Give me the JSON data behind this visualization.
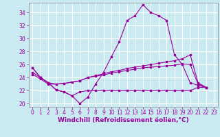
{
  "background_color": "#c8eaf0",
  "grid_color": "#ffffff",
  "line_color": "#990099",
  "x_ticks": [
    0,
    1,
    2,
    3,
    4,
    5,
    6,
    7,
    8,
    9,
    10,
    11,
    12,
    13,
    14,
    15,
    16,
    17,
    18,
    19,
    20,
    21,
    22,
    23
  ],
  "y_ticks": [
    20,
    22,
    24,
    26,
    28,
    30,
    32,
    34
  ],
  "ylim": [
    19.5,
    35.5
  ],
  "xlim": [
    -0.5,
    23.5
  ],
  "xlabel": "Windchill (Refroidissement éolien,°C)",
  "s0_x": [
    0,
    1,
    2,
    3,
    4,
    5,
    6,
    7,
    8,
    9,
    10,
    11,
    12,
    13,
    14,
    15,
    16,
    17,
    18,
    19,
    20,
    21,
    22
  ],
  "s0_y": [
    25.5,
    24.0,
    23.2,
    22.1,
    21.8,
    21.2,
    20.0,
    21.0,
    23.0,
    24.8,
    27.2,
    29.5,
    32.8,
    33.5,
    35.2,
    34.0,
    33.5,
    32.8,
    27.5,
    26.0,
    23.2,
    22.8,
    22.5
  ],
  "s1_x": [
    0,
    1,
    2,
    3,
    4,
    5,
    6,
    7,
    8,
    9,
    10,
    11,
    12,
    13,
    14,
    15,
    16,
    17,
    18,
    19,
    20,
    21,
    22
  ],
  "s1_y": [
    24.8,
    24.0,
    23.2,
    23.0,
    23.1,
    23.3,
    23.5,
    24.0,
    24.3,
    24.6,
    24.9,
    25.1,
    25.4,
    25.6,
    25.8,
    26.0,
    26.2,
    26.4,
    26.6,
    26.9,
    27.5,
    23.2,
    22.5
  ],
  "s2_x": [
    0,
    1,
    2,
    3,
    4,
    5,
    6,
    7,
    8,
    9,
    10,
    11,
    12,
    13,
    14,
    15,
    16,
    17,
    18,
    19,
    20,
    21,
    22
  ],
  "s2_y": [
    24.5,
    23.8,
    23.0,
    23.0,
    23.1,
    23.3,
    23.5,
    24.0,
    24.2,
    24.4,
    24.7,
    24.9,
    25.1,
    25.3,
    25.5,
    25.6,
    25.7,
    25.8,
    25.9,
    26.1,
    26.0,
    23.0,
    22.5
  ],
  "s3_x": [
    0,
    1,
    2,
    3,
    4,
    5,
    6,
    7,
    8,
    9,
    10,
    11,
    12,
    13,
    14,
    15,
    16,
    17,
    18,
    19,
    20,
    21,
    22
  ],
  "s3_y": [
    25.5,
    24.0,
    23.2,
    22.1,
    21.8,
    21.2,
    21.8,
    22.0,
    22.0,
    22.0,
    22.0,
    22.0,
    22.0,
    22.0,
    22.0,
    22.0,
    22.0,
    22.0,
    22.0,
    22.0,
    22.0,
    22.5,
    22.5
  ],
  "tick_fontsize": 5.5,
  "axis_fontsize": 6.5,
  "lw": 0.8,
  "ms": 1.8
}
